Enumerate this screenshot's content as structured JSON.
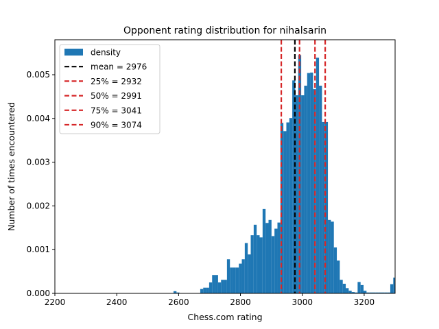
{
  "chart_data": {
    "type": "bar",
    "title": "Opponent rating distribution for nihalsarin",
    "xlabel": "Chess.com rating",
    "ylabel": "Number of times encountered",
    "xlim": [
      2200,
      3300
    ],
    "ylim": [
      0,
      0.0058
    ],
    "xticks": [
      2200,
      2400,
      2600,
      2800,
      3000,
      3200
    ],
    "yticks": [
      0.0,
      0.001,
      0.002,
      0.003,
      0.004,
      0.005
    ],
    "ytick_labels": [
      "0.000",
      "0.001",
      "0.002",
      "0.003",
      "0.004",
      "0.005"
    ],
    "histogram": {
      "name": "density",
      "color": "#1f77b4",
      "bin_width": 9.6,
      "bin_left_edges": [
        2583.6,
        2593.2,
        2670.0,
        2679.6,
        2689.2,
        2698.8,
        2708.4,
        2718.0,
        2727.6,
        2737.2,
        2746.8,
        2756.4,
        2766.0,
        2775.6,
        2785.2,
        2794.8,
        2804.4,
        2814.0,
        2823.6,
        2833.2,
        2842.8,
        2852.4,
        2862.0,
        2871.6,
        2881.2,
        2890.8,
        2900.4,
        2910.0,
        2919.6,
        2929.2,
        2938.8,
        2948.4,
        2958.0,
        2967.6,
        2977.2,
        2986.8,
        2996.4,
        3006.0,
        3015.6,
        3025.2,
        3034.8,
        3044.4,
        3054.0,
        3063.6,
        3073.2,
        3082.8,
        3092.4,
        3102.0,
        3111.6,
        3121.2,
        3130.8,
        3140.4,
        3150.0,
        3159.6,
        3169.2,
        3178.8,
        3188.4,
        3198.0,
        3207.6,
        3217.2,
        3226.8,
        3236.4,
        3246.0,
        3255.6,
        3265.2,
        3274.8,
        3284.4,
        3294.0
      ],
      "values": [
        5e-05,
        2e-05,
        0.0001,
        0.00013,
        0.00013,
        0.00025,
        0.00042,
        0.00042,
        0.00025,
        0.00031,
        0.00031,
        0.00078,
        0.00059,
        0.00059,
        0.00059,
        0.00068,
        0.00078,
        0.00115,
        0.00089,
        0.00133,
        0.00157,
        0.00133,
        0.00128,
        0.00193,
        0.00161,
        0.00168,
        0.00131,
        0.00148,
        0.00162,
        0.0039,
        0.00371,
        0.00391,
        0.00401,
        0.00487,
        0.00453,
        0.00545,
        0.00453,
        0.00475,
        0.00504,
        0.00505,
        0.00467,
        0.00539,
        0.00475,
        0.00392,
        0.00392,
        0.00168,
        0.00164,
        0.00105,
        0.00075,
        0.00031,
        0.00022,
        0.00012,
        6e-05,
        3e-05,
        2e-05,
        0.00026,
        0.00019,
        6e-05,
        2e-05,
        2e-05,
        2e-05,
        2e-05,
        2e-05,
        2e-05,
        2e-05,
        2e-05,
        0.00021,
        0.00036
      ]
    },
    "vlines": [
      {
        "label": "mean = 2976",
        "x": 2976,
        "color": "#000000"
      },
      {
        "label": "25% = 2932",
        "x": 2932,
        "color": "#d62728"
      },
      {
        "label": "50% = 2991",
        "x": 2991,
        "color": "#d62728"
      },
      {
        "label": "75% = 3041",
        "x": 3041,
        "color": "#d62728"
      },
      {
        "label": "90% = 3074",
        "x": 3074,
        "color": "#d62728"
      }
    ],
    "legend_placement": "top-left",
    "grid": false
  }
}
